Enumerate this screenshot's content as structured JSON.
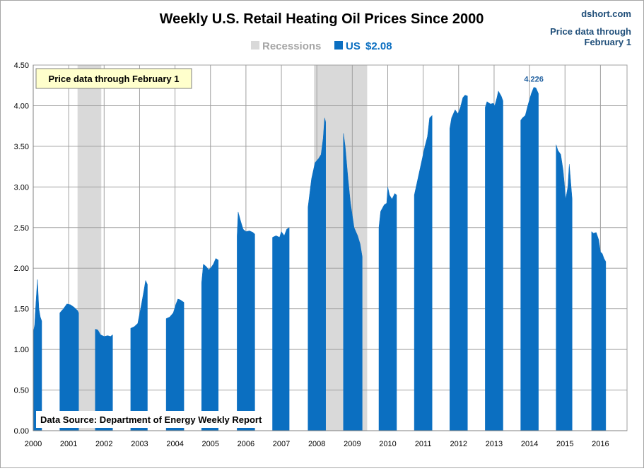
{
  "site": "dshort.com",
  "side_note": [
    "Price data through",
    "February 1"
  ],
  "callout": "Price data through February 1",
  "source": "Data Source: Department of Energy Weekly Report",
  "colors": {
    "series": "#0b6fc1",
    "recession": "#d9d9d9",
    "grid": "#a0a0a0",
    "callout_bg": "#ffffcc",
    "side_note": "#1f4e79",
    "peak_label": "#1f5f9f"
  },
  "chart_data": {
    "type": "area",
    "title": "Weekly U.S. Retail Heating Oil Prices Since 2000",
    "legend": [
      {
        "label": "Recessions",
        "color": "#d9d9d9"
      },
      {
        "label": "US",
        "value_label": "$2.08",
        "color": "#0b6fc1"
      }
    ],
    "legend_position": "top",
    "grid": true,
    "ylim": [
      0,
      4.5
    ],
    "yticks": [
      "0.00",
      "0.50",
      "1.00",
      "1.50",
      "2.00",
      "2.50",
      "3.00",
      "3.50",
      "4.00",
      "4.50"
    ],
    "xlim": [
      2000,
      2016.75
    ],
    "xticks": [
      "2000",
      "2001",
      "2002",
      "2003",
      "2004",
      "2005",
      "2006",
      "2007",
      "2008",
      "2009",
      "2010",
      "2011",
      "2012",
      "2013",
      "2014",
      "2015",
      "2016"
    ],
    "recessions": [
      [
        2001.25,
        2001.92
      ],
      [
        2007.92,
        2009.42
      ]
    ],
    "series": [
      {
        "name": "US",
        "segments": [
          [
            [
              2000.0,
              1.2
            ],
            [
              2000.04,
              1.3
            ],
            [
              2000.08,
              1.6
            ],
            [
              2000.12,
              1.86
            ],
            [
              2000.16,
              1.5
            ],
            [
              2000.2,
              1.4
            ],
            [
              2000.24,
              1.35
            ]
          ],
          [
            [
              2000.75,
              1.45
            ],
            [
              2000.85,
              1.5
            ],
            [
              2000.95,
              1.56
            ],
            [
              2001.05,
              1.55
            ],
            [
              2001.15,
              1.52
            ],
            [
              2001.25,
              1.48
            ],
            [
              2001.28,
              1.45
            ]
          ],
          [
            [
              2001.75,
              1.25
            ],
            [
              2001.82,
              1.24
            ],
            [
              2001.9,
              1.18
            ],
            [
              2002.0,
              1.16
            ],
            [
              2002.1,
              1.17
            ],
            [
              2002.18,
              1.16
            ],
            [
              2002.24,
              1.18
            ]
          ],
          [
            [
              2002.75,
              1.26
            ],
            [
              2002.85,
              1.28
            ],
            [
              2002.95,
              1.32
            ],
            [
              2003.05,
              1.55
            ],
            [
              2003.12,
              1.72
            ],
            [
              2003.17,
              1.85
            ],
            [
              2003.22,
              1.8
            ]
          ],
          [
            [
              2003.75,
              1.38
            ],
            [
              2003.85,
              1.4
            ],
            [
              2003.95,
              1.45
            ],
            [
              2004.02,
              1.55
            ],
            [
              2004.08,
              1.62
            ],
            [
              2004.15,
              1.61
            ],
            [
              2004.25,
              1.58
            ]
          ],
          [
            [
              2004.75,
              1.82
            ],
            [
              2004.8,
              2.05
            ],
            [
              2004.88,
              2.02
            ],
            [
              2004.95,
              1.98
            ],
            [
              2005.02,
              2.01
            ],
            [
              2005.08,
              2.05
            ],
            [
              2005.15,
              2.12
            ],
            [
              2005.22,
              2.1
            ]
          ],
          [
            [
              2005.75,
              2.4
            ],
            [
              2005.78,
              2.69
            ],
            [
              2005.85,
              2.58
            ],
            [
              2005.92,
              2.48
            ],
            [
              2006.0,
              2.45
            ],
            [
              2006.1,
              2.46
            ],
            [
              2006.2,
              2.44
            ],
            [
              2006.25,
              2.42
            ]
          ],
          [
            [
              2006.75,
              2.38
            ],
            [
              2006.85,
              2.4
            ],
            [
              2006.95,
              2.38
            ],
            [
              2007.0,
              2.45
            ],
            [
              2007.08,
              2.4
            ],
            [
              2007.15,
              2.48
            ],
            [
              2007.22,
              2.5
            ]
          ],
          [
            [
              2007.75,
              2.75
            ],
            [
              2007.85,
              3.1
            ],
            [
              2007.95,
              3.3
            ],
            [
              2008.05,
              3.35
            ],
            [
              2008.12,
              3.4
            ],
            [
              2008.18,
              3.6
            ],
            [
              2008.22,
              3.85
            ],
            [
              2008.25,
              3.8
            ]
          ],
          [
            [
              2008.75,
              3.66
            ],
            [
              2008.8,
              3.5
            ],
            [
              2008.88,
              3.1
            ],
            [
              2008.95,
              2.8
            ],
            [
              2009.05,
              2.5
            ],
            [
              2009.15,
              2.4
            ],
            [
              2009.22,
              2.3
            ],
            [
              2009.28,
              2.14
            ]
          ],
          [
            [
              2009.75,
              2.5
            ],
            [
              2009.8,
              2.7
            ],
            [
              2009.9,
              2.78
            ],
            [
              2009.97,
              2.8
            ],
            [
              2010.0,
              3.0
            ],
            [
              2010.05,
              2.9
            ],
            [
              2010.12,
              2.85
            ],
            [
              2010.2,
              2.92
            ],
            [
              2010.25,
              2.9
            ]
          ],
          [
            [
              2010.75,
              2.9
            ],
            [
              2010.85,
              3.1
            ],
            [
              2010.95,
              3.3
            ],
            [
              2011.05,
              3.5
            ],
            [
              2011.12,
              3.62
            ],
            [
              2011.18,
              3.85
            ],
            [
              2011.25,
              3.88
            ]
          ],
          [
            [
              2011.75,
              3.72
            ],
            [
              2011.8,
              3.85
            ],
            [
              2011.9,
              3.95
            ],
            [
              2011.98,
              3.9
            ],
            [
              2012.05,
              3.98
            ],
            [
              2012.12,
              4.1
            ],
            [
              2012.18,
              4.13
            ],
            [
              2012.25,
              4.12
            ]
          ],
          [
            [
              2012.75,
              3.98
            ],
            [
              2012.8,
              4.05
            ],
            [
              2012.9,
              4.02
            ],
            [
              2012.98,
              4.03
            ],
            [
              2013.02,
              4.0
            ],
            [
              2013.08,
              4.1
            ],
            [
              2013.12,
              4.18
            ],
            [
              2013.2,
              4.12
            ],
            [
              2013.25,
              4.06
            ]
          ],
          [
            [
              2013.75,
              3.82
            ],
            [
              2013.8,
              3.85
            ],
            [
              2013.88,
              3.88
            ],
            [
              2013.95,
              4.0
            ],
            [
              2014.05,
              4.15
            ],
            [
              2014.12,
              4.226
            ],
            [
              2014.18,
              4.22
            ],
            [
              2014.25,
              4.15
            ]
          ],
          [
            [
              2014.75,
              3.52
            ],
            [
              2014.8,
              3.45
            ],
            [
              2014.88,
              3.4
            ],
            [
              2014.95,
              3.2
            ],
            [
              2015.02,
              2.85
            ],
            [
              2015.08,
              3.0
            ],
            [
              2015.12,
              3.28
            ],
            [
              2015.2,
              2.85
            ]
          ],
          [
            [
              2015.75,
              2.45
            ],
            [
              2015.8,
              2.43
            ],
            [
              2015.88,
              2.44
            ],
            [
              2015.95,
              2.35
            ],
            [
              2016.0,
              2.2
            ],
            [
              2016.05,
              2.18
            ],
            [
              2016.1,
              2.12
            ],
            [
              2016.15,
              2.08
            ]
          ]
        ]
      }
    ],
    "annotations": [
      {
        "text": "4.226",
        "x": 2014.12,
        "y": 4.226
      }
    ]
  }
}
